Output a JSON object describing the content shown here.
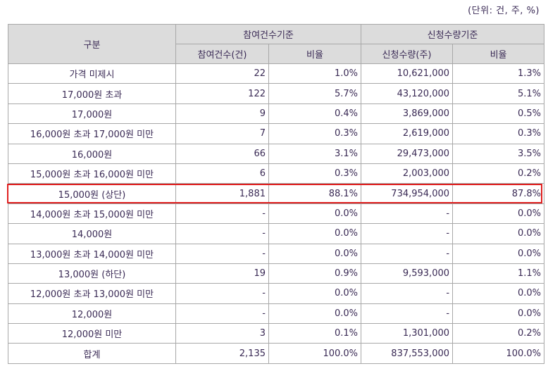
{
  "unit_note": "(단위: 건, 주, %)",
  "header": {
    "category": "구분",
    "group_participation": "참여건수기준",
    "group_subscription": "신청수량기준",
    "col_count": "참여건수(건)",
    "col_count_ratio": "비율",
    "col_qty": "신청수량(주)",
    "col_qty_ratio": "비율"
  },
  "rows": [
    {
      "label": "가격 미제시",
      "count": "22",
      "count_ratio": "1.0%",
      "qty": "10,621,000",
      "qty_ratio": "1.3%"
    },
    {
      "label": "17,000원 초과",
      "count": "122",
      "count_ratio": "5.7%",
      "qty": "43,120,000",
      "qty_ratio": "5.1%"
    },
    {
      "label": "17,000원",
      "count": "9",
      "count_ratio": "0.4%",
      "qty": "3,869,000",
      "qty_ratio": "0.5%"
    },
    {
      "label": "16,000원 초과 17,000원 미만",
      "count": "7",
      "count_ratio": "0.3%",
      "qty": "2,619,000",
      "qty_ratio": "0.3%"
    },
    {
      "label": "16,000원",
      "count": "66",
      "count_ratio": "3.1%",
      "qty": "29,473,000",
      "qty_ratio": "3.5%"
    },
    {
      "label": "15,000원 초과 16,000원 미만",
      "count": "6",
      "count_ratio": "0.3%",
      "qty": "2,003,000",
      "qty_ratio": "0.2%"
    },
    {
      "label": "15,000원 (상단)",
      "count": "1,881",
      "count_ratio": "88.1%",
      "qty": "734,954,000",
      "qty_ratio": "87.8%"
    },
    {
      "label": "14,000원 초과 15,000원 미만",
      "count": "-",
      "count_ratio": "0.0%",
      "qty": "-",
      "qty_ratio": "0.0%"
    },
    {
      "label": "14,000원",
      "count": "-",
      "count_ratio": "0.0%",
      "qty": "-",
      "qty_ratio": "0.0%"
    },
    {
      "label": "13,000원 초과 14,000원 미만",
      "count": "-",
      "count_ratio": "0.0%",
      "qty": "-",
      "qty_ratio": "0.0%"
    },
    {
      "label": "13,000원 (하단)",
      "count": "19",
      "count_ratio": "0.9%",
      "qty": "9,593,000",
      "qty_ratio": "1.1%"
    },
    {
      "label": "12,000원 초과 13,000원 미만",
      "count": "-",
      "count_ratio": "0.0%",
      "qty": "-",
      "qty_ratio": "0.0%"
    },
    {
      "label": "12,000원",
      "count": "-",
      "count_ratio": "0.0%",
      "qty": "-",
      "qty_ratio": "0.0%"
    },
    {
      "label": "12,000원 미만",
      "count": "3",
      "count_ratio": "0.1%",
      "qty": "1,301,000",
      "qty_ratio": "0.2%"
    },
    {
      "label": "합계",
      "count": "2,135",
      "count_ratio": "100.0%",
      "qty": "837,553,000",
      "qty_ratio": "100.0%"
    }
  ],
  "colors": {
    "header_bg": "#dcdcdc",
    "border": "#a8a8a8",
    "highlight": "#e02020",
    "text": "#3a2a55"
  }
}
